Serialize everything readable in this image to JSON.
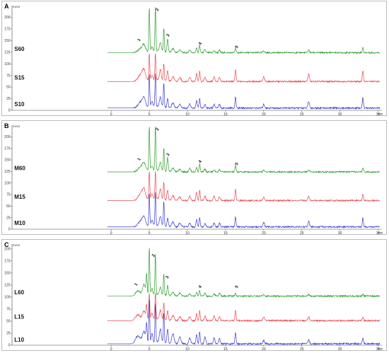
{
  "chart_data": [
    {
      "type": "line",
      "panel": "A",
      "y_unit": "mAU",
      "x_unit": "min",
      "xlim": [
        -13,
        35.5
      ],
      "ylim": [
        0,
        225
      ],
      "x_ticks": [
        0,
        5,
        10,
        15,
        20,
        25,
        30,
        35
      ],
      "y_ticks": [
        0,
        25,
        50,
        75,
        100,
        125,
        150,
        175,
        200
      ],
      "peak_labels": [
        {
          "label": "1",
          "x": 3.8,
          "y": 150
        },
        {
          "label": "2",
          "x": 6.2,
          "y": 215
        },
        {
          "label": "3",
          "x": 7.6,
          "y": 160
        },
        {
          "label": "4",
          "x": 11.8,
          "y": 142
        },
        {
          "label": "5",
          "x": 16.6,
          "y": 135
        }
      ],
      "series": [
        {
          "name": "S60",
          "color": "#2e9e2e",
          "baseline": 124,
          "peaks": [
            [
              3.9,
              8,
              0.35
            ],
            [
              4.3,
              12,
              0.2
            ],
            [
              5.0,
              95,
              0.06
            ],
            [
              5.35,
              8,
              0.12
            ],
            [
              5.8,
              95,
              0.06
            ],
            [
              6.45,
              18,
              0.12
            ],
            [
              6.9,
              50,
              0.06
            ],
            [
              7.4,
              28,
              0.08
            ],
            [
              8.1,
              8,
              0.15
            ],
            [
              9.0,
              6,
              0.15
            ],
            [
              10.3,
              6,
              0.12
            ],
            [
              11.2,
              10,
              0.08
            ],
            [
              11.6,
              16,
              0.07
            ],
            [
              12.3,
              6,
              0.1
            ],
            [
              13.5,
              4,
              0.1
            ],
            [
              14.2,
              5,
              0.1
            ],
            [
              16.3,
              10,
              0.07
            ],
            [
              20.0,
              4,
              0.1
            ],
            [
              25.9,
              6,
              0.1
            ],
            [
              33.0,
              12,
              0.07
            ]
          ]
        },
        {
          "name": "S15",
          "color": "#e8474f",
          "baseline": 62,
          "peaks": [
            [
              3.9,
              14,
              0.35
            ],
            [
              4.3,
              18,
              0.2
            ],
            [
              5.0,
              58,
              0.06
            ],
            [
              5.35,
              10,
              0.12
            ],
            [
              5.8,
              58,
              0.06
            ],
            [
              6.45,
              22,
              0.12
            ],
            [
              6.9,
              36,
              0.06
            ],
            [
              7.4,
              22,
              0.08
            ],
            [
              8.1,
              10,
              0.15
            ],
            [
              9.0,
              8,
              0.15
            ],
            [
              10.3,
              10,
              0.12
            ],
            [
              11.2,
              18,
              0.08
            ],
            [
              11.6,
              22,
              0.07
            ],
            [
              12.3,
              10,
              0.1
            ],
            [
              13.5,
              10,
              0.1
            ],
            [
              14.2,
              8,
              0.1
            ],
            [
              16.3,
              26,
              0.07
            ],
            [
              20.0,
              10,
              0.1
            ],
            [
              25.9,
              16,
              0.1
            ],
            [
              33.0,
              24,
              0.07
            ]
          ]
        },
        {
          "name": "S10",
          "color": "#3a3ad0",
          "baseline": 5,
          "peaks": [
            [
              3.9,
              12,
              0.35
            ],
            [
              4.3,
              16,
              0.2
            ],
            [
              5.0,
              70,
              0.06
            ],
            [
              5.35,
              10,
              0.12
            ],
            [
              5.8,
              70,
              0.06
            ],
            [
              6.45,
              20,
              0.12
            ],
            [
              6.9,
              52,
              0.06
            ],
            [
              7.4,
              18,
              0.08
            ],
            [
              8.1,
              10,
              0.15
            ],
            [
              9.0,
              8,
              0.15
            ],
            [
              10.3,
              8,
              0.12
            ],
            [
              11.2,
              16,
              0.08
            ],
            [
              11.6,
              20,
              0.07
            ],
            [
              12.3,
              8,
              0.1
            ],
            [
              13.5,
              8,
              0.1
            ],
            [
              14.2,
              8,
              0.1
            ],
            [
              16.3,
              24,
              0.07
            ],
            [
              20.0,
              8,
              0.1
            ],
            [
              25.9,
              14,
              0.1
            ],
            [
              33.0,
              22,
              0.07
            ]
          ]
        }
      ]
    },
    {
      "type": "line",
      "panel": "B",
      "y_unit": "mAU",
      "x_unit": "min",
      "xlim": [
        -13,
        35.5
      ],
      "ylim": [
        0,
        225
      ],
      "x_ticks": [
        0,
        5,
        10,
        15,
        20,
        25,
        30,
        35
      ],
      "y_ticks": [
        0,
        25,
        50,
        75,
        100,
        125,
        150,
        175,
        200
      ],
      "peak_labels": [
        {
          "label": "1",
          "x": 3.8,
          "y": 150
        },
        {
          "label": "2",
          "x": 6.2,
          "y": 215
        },
        {
          "label": "3",
          "x": 7.6,
          "y": 160
        },
        {
          "label": "4",
          "x": 11.8,
          "y": 145
        },
        {
          "label": "5",
          "x": 16.6,
          "y": 140
        }
      ],
      "series": [
        {
          "name": "M60",
          "color": "#2e9e2e",
          "baseline": 124,
          "peaks": [
            [
              3.9,
              10,
              0.35
            ],
            [
              4.3,
              14,
              0.2
            ],
            [
              5.0,
              95,
              0.06
            ],
            [
              5.35,
              8,
              0.12
            ],
            [
              5.8,
              95,
              0.06
            ],
            [
              6.45,
              18,
              0.12
            ],
            [
              6.9,
              50,
              0.06
            ],
            [
              7.4,
              30,
              0.08
            ],
            [
              8.1,
              8,
              0.15
            ],
            [
              9.0,
              6,
              0.15
            ],
            [
              10.3,
              8,
              0.12
            ],
            [
              11.2,
              10,
              0.08
            ],
            [
              11.6,
              18,
              0.07
            ],
            [
              12.3,
              6,
              0.1
            ],
            [
              13.5,
              4,
              0.1
            ],
            [
              14.2,
              5,
              0.1
            ],
            [
              16.3,
              14,
              0.07
            ],
            [
              20.0,
              4,
              0.1
            ],
            [
              25.9,
              4,
              0.1
            ],
            [
              33.0,
              8,
              0.07
            ]
          ]
        },
        {
          "name": "M15",
          "color": "#e8474f",
          "baseline": 62,
          "peaks": [
            [
              3.9,
              14,
              0.35
            ],
            [
              4.3,
              18,
              0.2
            ],
            [
              5.0,
              60,
              0.06
            ],
            [
              5.35,
              10,
              0.12
            ],
            [
              5.8,
              60,
              0.06
            ],
            [
              6.45,
              22,
              0.12
            ],
            [
              6.9,
              38,
              0.06
            ],
            [
              7.4,
              22,
              0.08
            ],
            [
              8.1,
              10,
              0.15
            ],
            [
              9.0,
              8,
              0.15
            ],
            [
              10.3,
              10,
              0.12
            ],
            [
              11.2,
              18,
              0.08
            ],
            [
              11.6,
              22,
              0.07
            ],
            [
              12.3,
              10,
              0.1
            ],
            [
              13.5,
              10,
              0.1
            ],
            [
              14.2,
              8,
              0.1
            ],
            [
              16.3,
              24,
              0.07
            ],
            [
              20.0,
              8,
              0.1
            ],
            [
              25.9,
              10,
              0.1
            ],
            [
              33.0,
              14,
              0.07
            ]
          ]
        },
        {
          "name": "M10",
          "color": "#3a3ad0",
          "baseline": 5,
          "peaks": [
            [
              3.9,
              12,
              0.35
            ],
            [
              4.3,
              16,
              0.2
            ],
            [
              5.0,
              70,
              0.06
            ],
            [
              5.35,
              10,
              0.12
            ],
            [
              5.8,
              70,
              0.06
            ],
            [
              6.45,
              20,
              0.12
            ],
            [
              6.9,
              52,
              0.06
            ],
            [
              7.4,
              18,
              0.08
            ],
            [
              8.1,
              10,
              0.15
            ],
            [
              9.0,
              8,
              0.15
            ],
            [
              10.3,
              8,
              0.12
            ],
            [
              11.2,
              16,
              0.08
            ],
            [
              11.6,
              20,
              0.07
            ],
            [
              12.3,
              8,
              0.1
            ],
            [
              13.5,
              8,
              0.1
            ],
            [
              14.2,
              8,
              0.1
            ],
            [
              16.3,
              22,
              0.07
            ],
            [
              20.0,
              10,
              0.1
            ],
            [
              25.9,
              12,
              0.1
            ],
            [
              33.0,
              20,
              0.07
            ]
          ]
        }
      ]
    },
    {
      "type": "line",
      "panel": "C",
      "y_unit": "mAU",
      "x_unit": "min",
      "xlim": [
        -13,
        35.5
      ],
      "ylim": [
        0,
        210
      ],
      "x_ticks": [
        0,
        5,
        10,
        15,
        20,
        25,
        30,
        35
      ],
      "y_ticks": [
        0,
        25,
        50,
        75,
        100,
        125,
        150,
        175,
        200
      ],
      "peak_labels": [
        {
          "label": "1",
          "x": 3.4,
          "y": 125
        },
        {
          "label": "2",
          "x": 5.7,
          "y": 185
        },
        {
          "label": "3",
          "x": 7.5,
          "y": 140
        },
        {
          "label": "4",
          "x": 11.8,
          "y": 120
        },
        {
          "label": "5",
          "x": 16.6,
          "y": 120
        }
      ],
      "series": [
        {
          "name": "L60",
          "color": "#2e9e2e",
          "baseline": 102,
          "peaks": [
            [
              3.5,
              10,
              0.3
            ],
            [
              4.3,
              22,
              0.2
            ],
            [
              4.65,
              40,
              0.07
            ],
            [
              5.0,
              100,
              0.06
            ],
            [
              5.35,
              12,
              0.1
            ],
            [
              5.8,
              85,
              0.06
            ],
            [
              6.45,
              15,
              0.12
            ],
            [
              6.9,
              45,
              0.06
            ],
            [
              7.4,
              22,
              0.08
            ],
            [
              8.1,
              8,
              0.15
            ],
            [
              9.0,
              6,
              0.15
            ],
            [
              10.3,
              5,
              0.12
            ],
            [
              11.2,
              8,
              0.08
            ],
            [
              11.6,
              12,
              0.07
            ],
            [
              12.3,
              6,
              0.1
            ],
            [
              13.5,
              5,
              0.1
            ],
            [
              14.2,
              6,
              0.1
            ],
            [
              16.3,
              6,
              0.07
            ],
            [
              20.0,
              3,
              0.1
            ],
            [
              25.9,
              3,
              0.1
            ],
            [
              33.0,
              4,
              0.07
            ]
          ]
        },
        {
          "name": "L15",
          "color": "#e8474f",
          "baseline": 51,
          "peaks": [
            [
              3.5,
              12,
              0.3
            ],
            [
              4.3,
              18,
              0.2
            ],
            [
              4.65,
              28,
              0.07
            ],
            [
              5.0,
              55,
              0.06
            ],
            [
              5.35,
              12,
              0.1
            ],
            [
              5.8,
              55,
              0.06
            ],
            [
              6.45,
              18,
              0.12
            ],
            [
              6.9,
              36,
              0.06
            ],
            [
              7.4,
              20,
              0.08
            ],
            [
              8.1,
              10,
              0.15
            ],
            [
              9.0,
              8,
              0.15
            ],
            [
              10.3,
              8,
              0.12
            ],
            [
              11.2,
              14,
              0.08
            ],
            [
              11.6,
              20,
              0.07
            ],
            [
              12.3,
              10,
              0.1
            ],
            [
              13.5,
              10,
              0.1
            ],
            [
              14.2,
              8,
              0.1
            ],
            [
              16.3,
              22,
              0.07
            ],
            [
              20.0,
              8,
              0.1
            ],
            [
              25.9,
              8,
              0.1
            ],
            [
              33.0,
              8,
              0.07
            ]
          ]
        },
        {
          "name": "L10",
          "color": "#3a3ad0",
          "baseline": 3,
          "peaks": [
            [
              3.5,
              16,
              0.3
            ],
            [
              4.3,
              24,
              0.2
            ],
            [
              4.65,
              36,
              0.07
            ],
            [
              5.0,
              90,
              0.06
            ],
            [
              5.35,
              18,
              0.1
            ],
            [
              5.8,
              80,
              0.06
            ],
            [
              6.45,
              28,
              0.12
            ],
            [
              6.9,
              62,
              0.06
            ],
            [
              7.4,
              30,
              0.08
            ],
            [
              8.1,
              20,
              0.15
            ],
            [
              9.0,
              14,
              0.15
            ],
            [
              10.3,
              12,
              0.12
            ],
            [
              11.2,
              20,
              0.08
            ],
            [
              11.6,
              24,
              0.07
            ],
            [
              12.3,
              14,
              0.1
            ],
            [
              13.5,
              12,
              0.1
            ],
            [
              14.2,
              10,
              0.1
            ],
            [
              16.3,
              24,
              0.07
            ],
            [
              20.0,
              8,
              0.1
            ],
            [
              25.9,
              8,
              0.1
            ],
            [
              33.0,
              12,
              0.07
            ]
          ]
        }
      ]
    }
  ]
}
